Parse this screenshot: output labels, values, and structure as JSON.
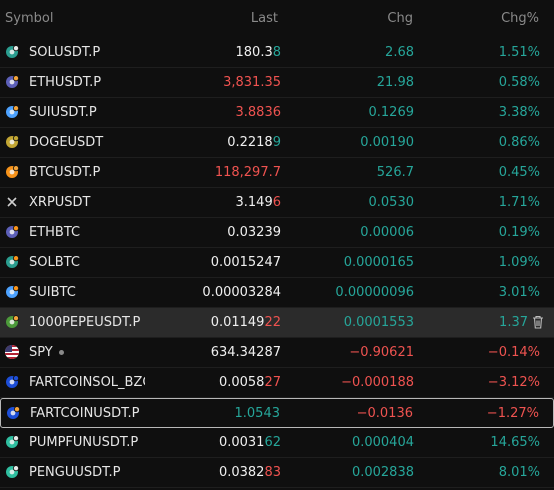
{
  "header": {
    "symbol": "Symbol",
    "last": "Last",
    "chg": "Chg",
    "chg_pct": "Chg%"
  },
  "colors": {
    "positive": "#26a69a",
    "negative": "#ef5350",
    "neutral": "#f0f0f0"
  },
  "rows": [
    {
      "symbol": "SOLUSDT.P",
      "icon": "sol-perp-icon",
      "last_main": "180.3",
      "last_tail": "8",
      "last_color": "wht",
      "tail_color": "pos",
      "chg": "2.68",
      "chg_pct": "1.51%",
      "dir": "pos"
    },
    {
      "symbol": "ETHUSDT.P",
      "icon": "eth-perp-icon",
      "last_main": "3,831.35",
      "last_tail": "",
      "last_color": "neg",
      "tail_color": "neg",
      "chg": "21.98",
      "chg_pct": "0.58%",
      "dir": "pos"
    },
    {
      "symbol": "SUIUSDT.P",
      "icon": "sui-perp-icon",
      "last_main": "3.8836",
      "last_tail": "",
      "last_color": "neg",
      "tail_color": "neg",
      "chg": "0.1269",
      "chg_pct": "3.38%",
      "dir": "pos"
    },
    {
      "symbol": "DOGEUSDT",
      "icon": "doge-icon",
      "last_main": "0.2218",
      "last_tail": "9",
      "last_color": "wht",
      "tail_color": "pos",
      "chg": "0.00190",
      "chg_pct": "0.86%",
      "dir": "pos"
    },
    {
      "symbol": "BTCUSDT.P",
      "icon": "btc-perp-icon",
      "last_main": "118,297.7",
      "last_tail": "",
      "last_color": "neg",
      "tail_color": "neg",
      "chg": "526.7",
      "chg_pct": "0.45%",
      "dir": "pos"
    },
    {
      "symbol": "XRPUSDT",
      "icon": "xrp-icon",
      "last_main": "3.149",
      "last_tail": "6",
      "last_color": "wht",
      "tail_color": "neg",
      "chg": "0.0530",
      "chg_pct": "1.71%",
      "dir": "pos"
    },
    {
      "symbol": "ETHBTC",
      "icon": "eth-btc-icon",
      "last_main": "0.03239",
      "last_tail": "",
      "last_color": "wht",
      "tail_color": "wht",
      "chg": "0.00006",
      "chg_pct": "0.19%",
      "dir": "pos"
    },
    {
      "symbol": "SOLBTC",
      "icon": "sol-btc-icon",
      "last_main": "0.0015247",
      "last_tail": "",
      "last_color": "wht",
      "tail_color": "wht",
      "chg": "0.0000165",
      "chg_pct": "1.09%",
      "dir": "pos"
    },
    {
      "symbol": "SUIBTC",
      "icon": "sui-btc-icon",
      "last_main": "0.00003284",
      "last_tail": "",
      "last_color": "wht",
      "tail_color": "wht",
      "chg": "0.00000096",
      "chg_pct": "3.01%",
      "dir": "pos"
    },
    {
      "symbol": "1000PEPEUSDT.P",
      "icon": "pepe-perp-icon",
      "last_main": "0.01149",
      "last_tail": "22",
      "last_color": "wht",
      "tail_color": "neg",
      "chg": "0.0001553",
      "chg_pct": "1.37",
      "dir": "pos",
      "hover": true
    },
    {
      "symbol": "SPY",
      "icon": "us-flag-icon",
      "last_main": "634.34287",
      "last_tail": "",
      "last_color": "wht",
      "tail_color": "wht",
      "chg": "−0.90621",
      "chg_pct": "−0.14%",
      "dir": "neg",
      "status_dot": true
    },
    {
      "symbol": "FARTCOINSOL_BZC",
      "icon": "fartcoin-sol-icon",
      "last_main": "0.0058",
      "last_tail": "27",
      "last_color": "wht",
      "tail_color": "neg",
      "chg": "−0.000188",
      "chg_pct": "−3.12%",
      "dir": "neg"
    },
    {
      "symbol": "FARTCOINUSDT.P",
      "icon": "fartcoin-perp-icon",
      "last_main": "1.0543",
      "last_tail": "",
      "last_color": "pos",
      "tail_color": "pos",
      "chg": "−0.0136",
      "chg_pct": "−1.27%",
      "dir": "neg",
      "selected": true
    },
    {
      "symbol": "PUMPFUNUSDT.P",
      "icon": "pumpfun-perp-icon",
      "last_main": "0.0031",
      "last_tail": "62",
      "last_color": "wht",
      "tail_color": "pos",
      "chg": "0.000404",
      "chg_pct": "14.65%",
      "dir": "pos"
    },
    {
      "symbol": "PENGUUSDT.P",
      "icon": "pengu-perp-icon",
      "last_main": "0.0382",
      "last_tail": "83",
      "last_color": "wht",
      "tail_color": "neg",
      "chg": "0.002838",
      "chg_pct": "8.01%",
      "dir": "pos"
    }
  ]
}
